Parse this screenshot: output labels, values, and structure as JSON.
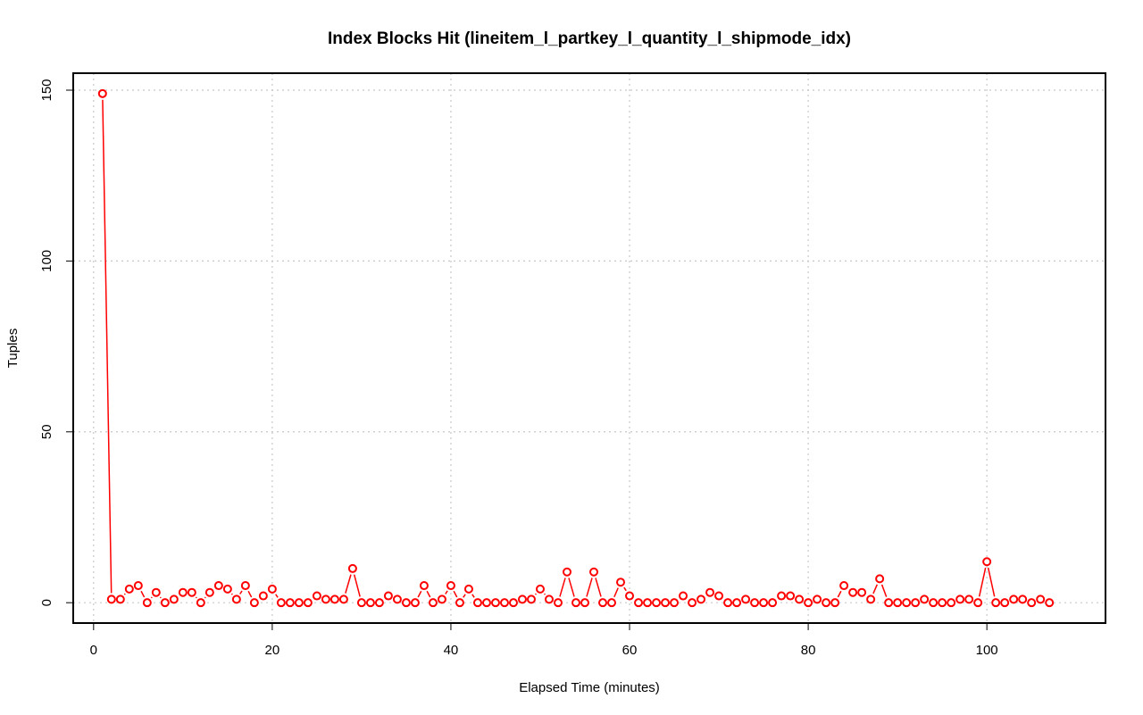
{
  "chart_data": {
    "type": "line",
    "title": "Index Blocks Hit (lineitem_l_partkey_l_quantity_l_shipmode_idx)",
    "xlabel": "Elapsed Time (minutes)",
    "ylabel": "Tuples",
    "xlim": [
      -2.28,
      113.28
    ],
    "ylim": [
      -5.96,
      154.96
    ],
    "xticks": [
      0,
      20,
      40,
      60,
      80,
      100
    ],
    "yticks": [
      0,
      50,
      100,
      150
    ],
    "xtick_labels": [
      "0",
      "20",
      "40",
      "60",
      "80",
      "100"
    ],
    "ytick_labels": [
      "0",
      "50",
      "100",
      "150"
    ],
    "grid": true,
    "series": [
      {
        "color": "#ff0000",
        "marker": "open-circle",
        "x": [
          1,
          2,
          3,
          4,
          5,
          6,
          7,
          8,
          9,
          10,
          11,
          12,
          13,
          14,
          15,
          16,
          17,
          18,
          19,
          20,
          21,
          22,
          23,
          24,
          25,
          26,
          27,
          28,
          29,
          30,
          31,
          32,
          33,
          34,
          35,
          36,
          37,
          38,
          39,
          40,
          41,
          42,
          43,
          44,
          45,
          46,
          47,
          48,
          49,
          50,
          51,
          52,
          53,
          54,
          55,
          56,
          57,
          58,
          59,
          60,
          61,
          62,
          63,
          64,
          65,
          66,
          67,
          68,
          69,
          70,
          71,
          72,
          73,
          74,
          75,
          76,
          77,
          78,
          79,
          80,
          81,
          82,
          83,
          84,
          85,
          86,
          87,
          88,
          89,
          90,
          91,
          92,
          93,
          94,
          95,
          96,
          97,
          98,
          99,
          100,
          101,
          102,
          103,
          104,
          105,
          106,
          107
        ],
        "y": [
          149,
          1,
          1,
          4,
          5,
          0,
          3,
          0,
          1,
          3,
          3,
          0,
          3,
          5,
          4,
          1,
          5,
          0,
          2,
          4,
          0,
          0,
          0,
          0,
          2,
          1,
          1,
          1,
          10,
          0,
          0,
          0,
          2,
          1,
          0,
          0,
          5,
          0,
          1,
          5,
          0,
          4,
          0,
          0,
          0,
          0,
          0,
          1,
          1,
          4,
          1,
          0,
          9,
          0,
          0,
          9,
          0,
          0,
          6,
          2,
          0,
          0,
          0,
          0,
          0,
          2,
          0,
          1,
          3,
          2,
          0,
          0,
          1,
          0,
          0,
          0,
          2,
          2,
          1,
          0,
          1,
          0,
          0,
          5,
          3,
          3,
          1,
          7,
          0,
          0,
          0,
          0,
          1,
          0,
          0,
          0,
          1,
          1,
          0,
          12,
          0,
          0,
          1,
          1,
          0,
          1,
          0
        ]
      }
    ]
  }
}
